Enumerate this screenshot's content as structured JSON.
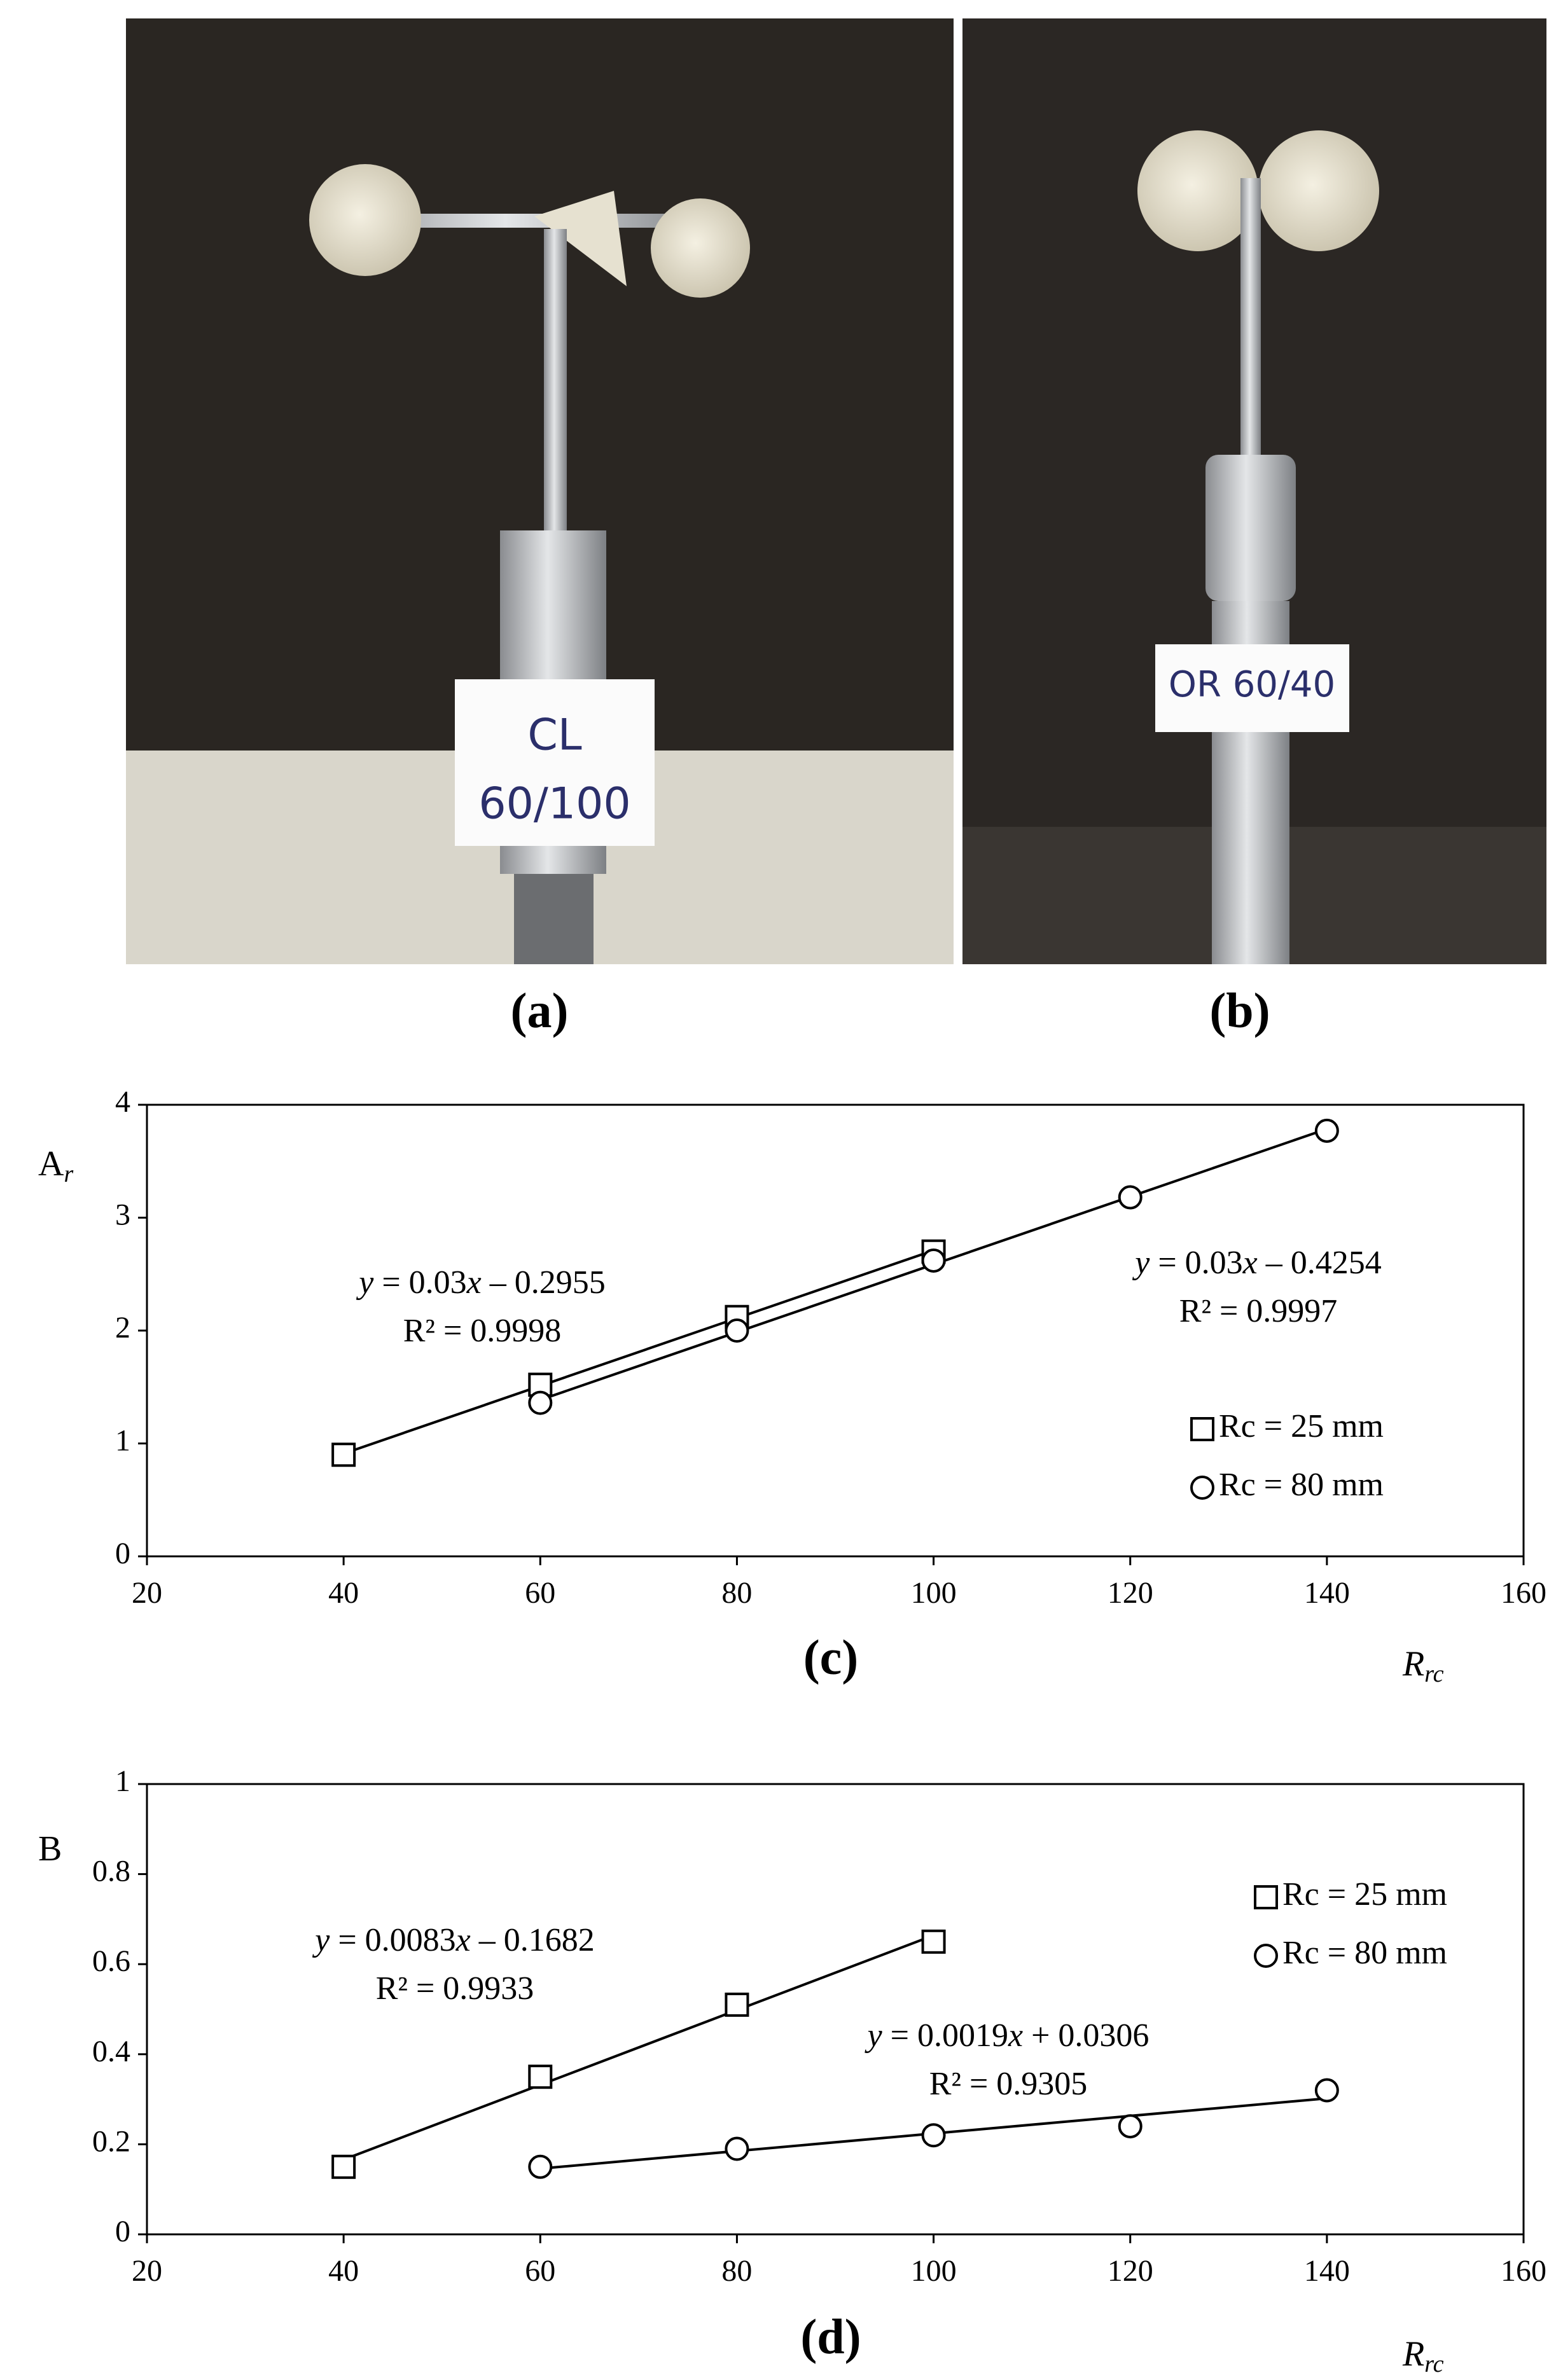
{
  "photos": [
    {
      "caption": "(a)",
      "sign": [
        "CL",
        "60/100"
      ]
    },
    {
      "caption": "(b)",
      "sign": [
        "OR 60/40"
      ]
    }
  ],
  "chart_data": [
    {
      "type": "scatter",
      "caption": "(c)",
      "ylabel": "A",
      "ylabel_sub": "r",
      "xlabel": "R",
      "xlabel_sub": "rc",
      "xlim": [
        20,
        160
      ],
      "xticks": [
        20,
        40,
        60,
        80,
        100,
        120,
        140,
        160
      ],
      "ylim": [
        0,
        4
      ],
      "yticks": [
        0,
        1,
        2,
        3,
        4
      ],
      "legend": "right",
      "trendline": true,
      "annotations": [
        [
          "y = 0.03x – 0.2955",
          "R² = 0.9998"
        ],
        [
          "y = 0.03x – 0.4254",
          "R² = 0.9997"
        ]
      ],
      "series": [
        {
          "name": "Rc = 25 mm",
          "marker": "square",
          "color": "#000000",
          "x": [
            40,
            60,
            80,
            100
          ],
          "values": [
            0.9,
            1.52,
            2.12,
            2.7
          ]
        },
        {
          "name": "Rc = 80 mm",
          "marker": "circle",
          "color": "#000000",
          "x": [
            60,
            80,
            100,
            120,
            140
          ],
          "values": [
            1.36,
            2.0,
            2.62,
            3.18,
            3.77
          ]
        }
      ]
    },
    {
      "type": "scatter",
      "caption": "(d)",
      "ylabel": "B",
      "xlabel": "R",
      "xlabel_sub": "rc",
      "xlim": [
        20,
        160
      ],
      "xticks": [
        20,
        40,
        60,
        80,
        100,
        120,
        140,
        160
      ],
      "ylim": [
        0,
        1
      ],
      "yticks": [
        0,
        0.2,
        0.4,
        0.6,
        0.8,
        1
      ],
      "legend": "upper right",
      "trendline": true,
      "annotations": [
        [
          "y = 0.0083x – 0.1682",
          "R² = 0.9933"
        ],
        [
          "y = 0.0019x + 0.0306",
          "R² = 0.9305"
        ]
      ],
      "series": [
        {
          "name": "Rc = 25 mm",
          "marker": "square",
          "color": "#000000",
          "x": [
            40,
            60,
            80,
            100
          ],
          "values": [
            0.15,
            0.35,
            0.51,
            0.65
          ]
        },
        {
          "name": "Rc = 80 mm",
          "marker": "circle",
          "color": "#000000",
          "x": [
            60,
            80,
            100,
            120,
            140
          ],
          "values": [
            0.15,
            0.19,
            0.22,
            0.24,
            0.32
          ]
        }
      ]
    }
  ]
}
